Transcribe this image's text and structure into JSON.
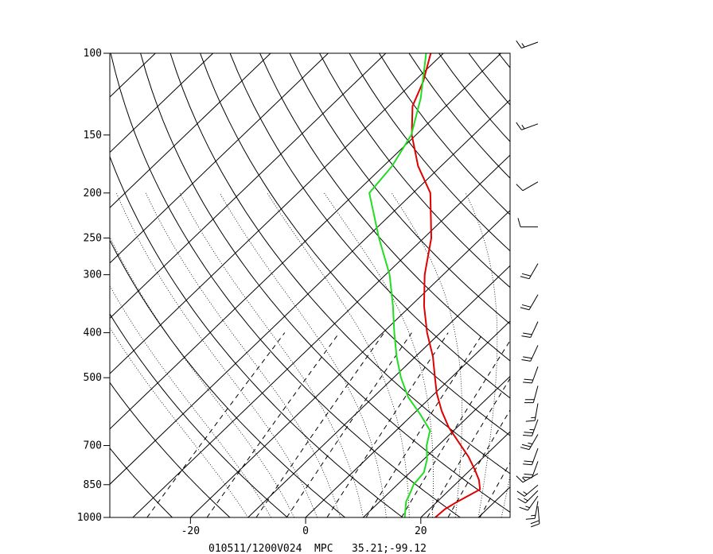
{
  "chart_data": {
    "type": "line",
    "title": "",
    "xlabel": "",
    "ylabel": "",
    "x_scale": "skew-t temperature (deg C)",
    "y_scale": "log pressure (hPa)",
    "ylim": [
      1000,
      100
    ],
    "xlim_at_surface": [
      -34,
      35.5
    ],
    "x_ticks": [
      -20,
      0,
      20
    ],
    "y_ticks": [
      100,
      150,
      200,
      250,
      300,
      400,
      500,
      700,
      850,
      1000
    ],
    "footer": "010511/1200V024  MPC   35.21;-99.12",
    "series": [
      {
        "color": "#e00000",
        "kind": "temperature",
        "points": [
          {
            "p": 1000,
            "t": 22.5
          },
          {
            "p": 960,
            "t": 22.7
          },
          {
            "p": 925,
            "t": 23.5
          },
          {
            "p": 870,
            "t": 25.2
          },
          {
            "p": 830,
            "t": 23.3
          },
          {
            "p": 790,
            "t": 20.8
          },
          {
            "p": 740,
            "t": 17.3
          },
          {
            "p": 690,
            "t": 13.1
          },
          {
            "p": 640,
            "t": 8.6
          },
          {
            "p": 590,
            "t": 4.4
          },
          {
            "p": 540,
            "t": 0.3
          },
          {
            "p": 500,
            "t": -2.8
          },
          {
            "p": 450,
            "t": -7.0
          },
          {
            "p": 400,
            "t": -12.3
          },
          {
            "p": 350,
            "t": -17.7
          },
          {
            "p": 300,
            "t": -23.2
          },
          {
            "p": 250,
            "t": -28.7
          },
          {
            "p": 200,
            "t": -37.0
          },
          {
            "p": 175,
            "t": -44.0
          },
          {
            "p": 150,
            "t": -50.7
          },
          {
            "p": 130,
            "t": -55.8
          },
          {
            "p": 115,
            "t": -58.4
          },
          {
            "p": 100,
            "t": -62.2
          }
        ]
      },
      {
        "color": "#22dd22",
        "kind": "dewpoint",
        "points": [
          {
            "p": 1000,
            "t": 17.2
          },
          {
            "p": 925,
            "t": 14.6
          },
          {
            "p": 880,
            "t": 13.6
          },
          {
            "p": 850,
            "t": 12.8
          },
          {
            "p": 800,
            "t": 12.4
          },
          {
            "p": 750,
            "t": 10.6
          },
          {
            "p": 700,
            "t": 8.0
          },
          {
            "p": 650,
            "t": 5.9
          },
          {
            "p": 600,
            "t": 1.3
          },
          {
            "p": 550,
            "t": -4.0
          },
          {
            "p": 500,
            "t": -8.7
          },
          {
            "p": 450,
            "t": -13.3
          },
          {
            "p": 400,
            "t": -18.0
          },
          {
            "p": 350,
            "t": -23.1
          },
          {
            "p": 300,
            "t": -29.3
          },
          {
            "p": 250,
            "t": -37.8
          },
          {
            "p": 200,
            "t": -47.6
          },
          {
            "p": 175,
            "t": -48.5
          },
          {
            "p": 150,
            "t": -50.8
          },
          {
            "p": 125,
            "t": -55.8
          },
          {
            "p": 100,
            "t": -63.0
          }
        ]
      }
    ],
    "background_lines": {
      "isotherms_deg_c": [
        -110,
        -100,
        -90,
        -80,
        -70,
        -60,
        -50,
        -40,
        -30,
        -20,
        -10,
        0,
        10,
        20,
        30,
        40
      ],
      "dry_adiabats_theta_k": [
        250,
        260,
        270,
        280,
        290,
        300,
        310,
        320,
        330,
        340,
        350,
        360,
        370,
        380,
        390,
        400,
        410,
        420,
        430,
        440,
        450
      ],
      "moist_adiabats_theta_w_deg_c": [
        -10,
        -6,
        -2,
        2,
        6,
        10,
        14,
        18,
        22,
        26,
        30,
        34,
        38,
        42
      ],
      "mixing_ratio_lines_g_per_kg": [
        0.4,
        1,
        2,
        3,
        5,
        8,
        12,
        16,
        20,
        28,
        40
      ]
    },
    "wind_barbs": [
      {
        "p": 100,
        "dir_deg": 250,
        "speed_kt": 15
      },
      {
        "p": 150,
        "dir_deg": 250,
        "speed_kt": 15
      },
      {
        "p": 200,
        "dir_deg": 240,
        "speed_kt": 10
      },
      {
        "p": 250,
        "dir_deg": 270,
        "speed_kt": 10
      },
      {
        "p": 300,
        "dir_deg": 210,
        "speed_kt": 20
      },
      {
        "p": 350,
        "dir_deg": 210,
        "speed_kt": 20
      },
      {
        "p": 400,
        "dir_deg": 205,
        "speed_kt": 20
      },
      {
        "p": 450,
        "dir_deg": 205,
        "speed_kt": 20
      },
      {
        "p": 500,
        "dir_deg": 200,
        "speed_kt": 20
      },
      {
        "p": 550,
        "dir_deg": 195,
        "speed_kt": 20
      },
      {
        "p": 600,
        "dir_deg": 190,
        "speed_kt": 15
      },
      {
        "p": 650,
        "dir_deg": 200,
        "speed_kt": 25
      },
      {
        "p": 700,
        "dir_deg": 210,
        "speed_kt": 25
      },
      {
        "p": 750,
        "dir_deg": 200,
        "speed_kt": 20
      },
      {
        "p": 800,
        "dir_deg": 200,
        "speed_kt": 20
      },
      {
        "p": 850,
        "dir_deg": 240,
        "speed_kt": 15
      },
      {
        "p": 900,
        "dir_deg": 230,
        "speed_kt": 15
      },
      {
        "p": 925,
        "dir_deg": 225,
        "speed_kt": 15
      },
      {
        "p": 950,
        "dir_deg": 215,
        "speed_kt": 15
      },
      {
        "p": 975,
        "dir_deg": 190,
        "speed_kt": 15
      },
      {
        "p": 1000,
        "dir_deg": 175,
        "speed_kt": 20
      }
    ]
  }
}
